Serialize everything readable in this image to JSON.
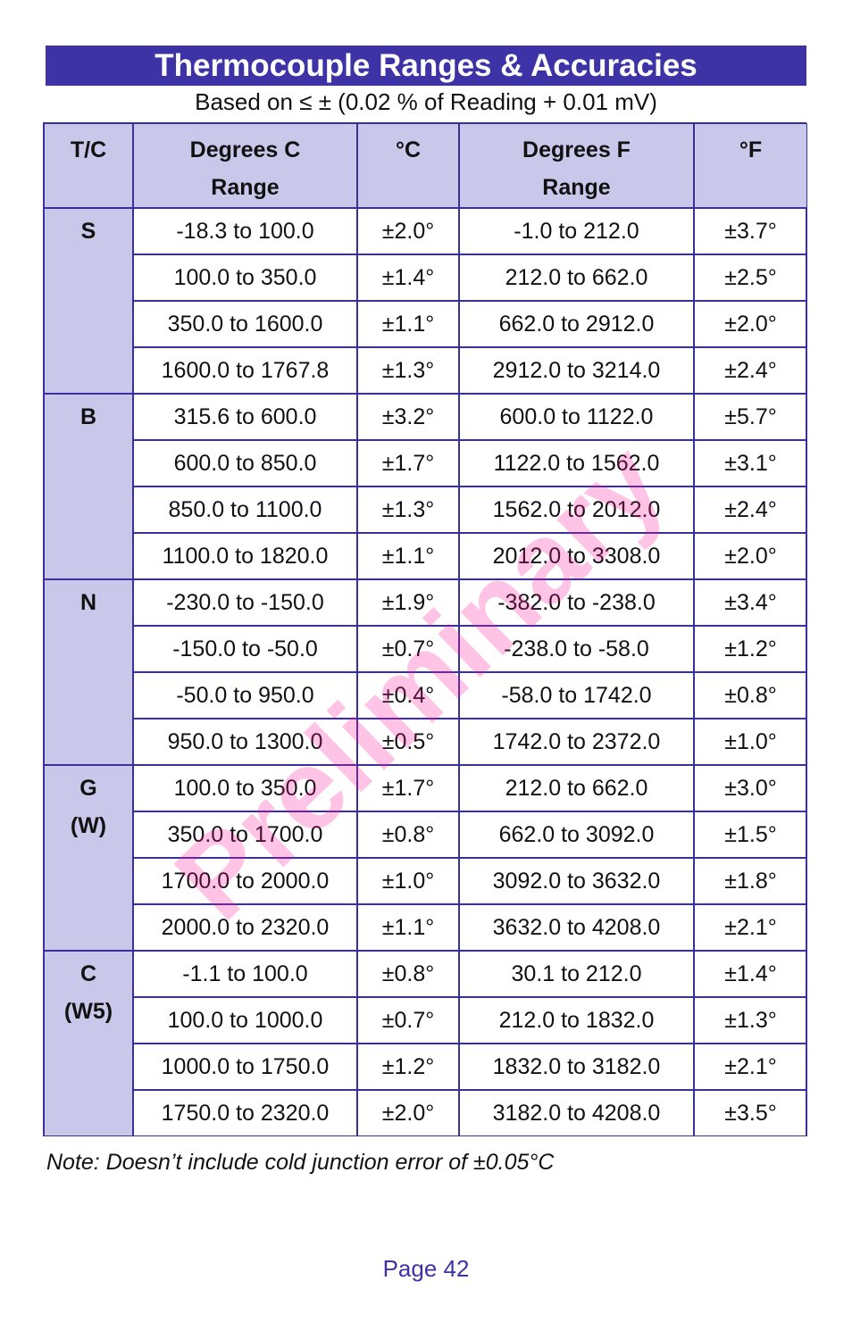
{
  "header": {
    "title": "Thermocouple Ranges & Accuracies",
    "subtitle": "Based on ≤ ± (0.02 % of Reading + 0.01 mV)"
  },
  "table": {
    "columns": [
      [
        "T/C"
      ],
      [
        "Degrees C",
        "Range"
      ],
      [
        "°C"
      ],
      [
        "Degrees F",
        "Range"
      ],
      [
        "°F"
      ]
    ],
    "groups": [
      {
        "label": [
          "S"
        ],
        "rows": [
          [
            "-18.3 to 100.0",
            "±2.0°",
            "-1.0 to 212.0",
            "±3.7°"
          ],
          [
            "100.0 to 350.0",
            "±1.4°",
            "212.0 to 662.0",
            "±2.5°"
          ],
          [
            "350.0 to 1600.0",
            "±1.1°",
            "662.0 to 2912.0",
            "±2.0°"
          ],
          [
            "1600.0 to 1767.8",
            "±1.3°",
            "2912.0 to 3214.0",
            "±2.4°"
          ]
        ]
      },
      {
        "label": [
          "B"
        ],
        "rows": [
          [
            "315.6 to 600.0",
            "±3.2°",
            "600.0 to 1122.0",
            "±5.7°"
          ],
          [
            "600.0 to 850.0",
            "±1.7°",
            "1122.0 to 1562.0",
            "±3.1°"
          ],
          [
            "850.0 to 1100.0",
            "±1.3°",
            "1562.0 to 2012.0",
            "±2.4°"
          ],
          [
            "1100.0 to 1820.0",
            "±1.1°",
            "2012.0 to 3308.0",
            "±2.0°"
          ]
        ]
      },
      {
        "label": [
          "N"
        ],
        "rows": [
          [
            "-230.0 to -150.0",
            "±1.9°",
            "-382.0 to -238.0",
            "±3.4°"
          ],
          [
            "-150.0 to -50.0",
            "±0.7°",
            "-238.0 to -58.0",
            "±1.2°"
          ],
          [
            "-50.0 to 950.0",
            "±0.4°",
            "-58.0 to 1742.0",
            "±0.8°"
          ],
          [
            "950.0 to 1300.0",
            "±0.5°",
            "1742.0 to 2372.0",
            "±1.0°"
          ]
        ]
      },
      {
        "label": [
          "G",
          "(W)"
        ],
        "rows": [
          [
            "100.0 to 350.0",
            "±1.7°",
            "212.0 to 662.0",
            "±3.0°"
          ],
          [
            "350.0 to 1700.0",
            "±0.8°",
            "662.0 to 3092.0",
            "±1.5°"
          ],
          [
            "1700.0 to 2000.0",
            "±1.0°",
            "3092.0 to 3632.0",
            "±1.8°"
          ],
          [
            "2000.0 to 2320.0",
            "±1.1°",
            "3632.0 to 4208.0",
            "±2.1°"
          ]
        ]
      },
      {
        "label": [
          "C",
          "(W5)"
        ],
        "rows": [
          [
            "-1.1 to 100.0",
            "±0.8°",
            "30.1 to 212.0",
            "±1.4°"
          ],
          [
            "100.0 to 1000.0",
            "±0.7°",
            "212.0 to 1832.0",
            "±1.3°"
          ],
          [
            "1000.0 to 1750.0",
            "±1.2°",
            "1832.0 to 3182.0",
            "±2.1°"
          ],
          [
            "1750.0 to 2320.0",
            "±2.0°",
            "3182.0 to 4208.0",
            "±3.5°"
          ]
        ]
      }
    ]
  },
  "note": "Note: Doesn’t include cold junction error of ±0.05°C",
  "footer": {
    "page": "Page 42"
  },
  "watermark": "Preliminary"
}
